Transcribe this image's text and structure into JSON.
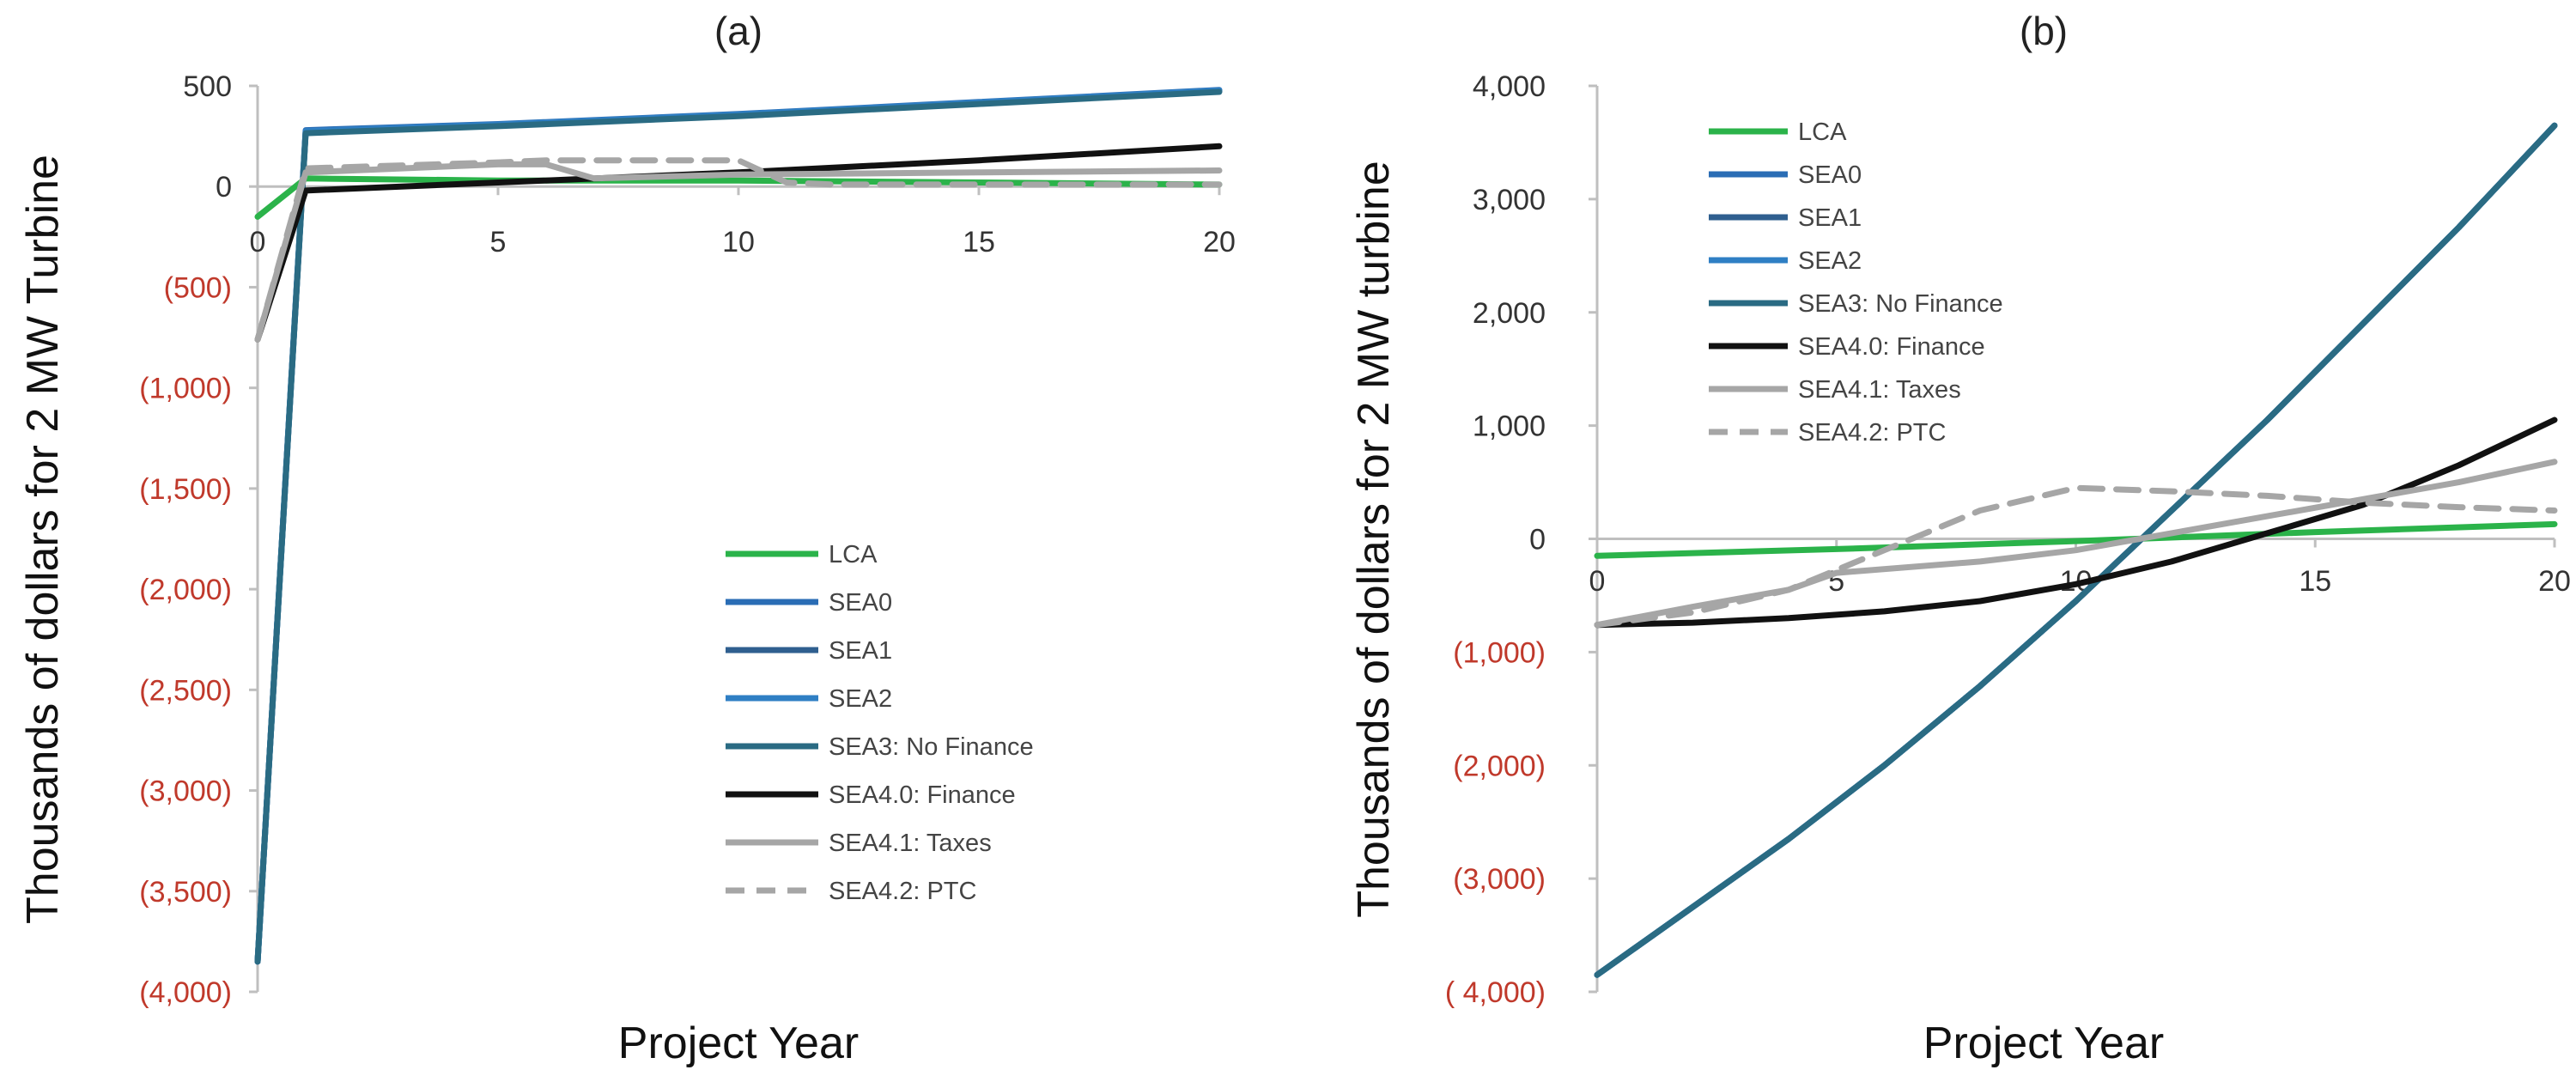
{
  "chart_data": [
    {
      "type": "line",
      "panel": "(a)",
      "xlabel": "Project Year",
      "ylabel": "Thousands of dollars for 2 MW Turbine",
      "xlim": [
        0,
        20
      ],
      "ylim": [
        -4000,
        500
      ],
      "xticks": [
        "0",
        "5",
        "10",
        "15",
        "20"
      ],
      "xtick_values": [
        0,
        5,
        10,
        15,
        20
      ],
      "yticks": [
        "500",
        "0",
        "(500)",
        "(1,000)",
        "(1,500)",
        "(2,000)",
        "(2,500)",
        "(3,000)",
        "(3,500)",
        "(4,000)"
      ],
      "ytick_values": [
        500,
        0,
        -500,
        -1000,
        -1500,
        -2000,
        -2500,
        -3000,
        -3500,
        -4000
      ],
      "legend_position": "bottom-right",
      "series": [
        {
          "name": "LCA",
          "color": "#2bb34a",
          "dash": false,
          "x": [
            0,
            1,
            5,
            10,
            15,
            20
          ],
          "y": [
            -150,
            40,
            30,
            30,
            20,
            10
          ]
        },
        {
          "name": "SEA0",
          "color": "#2a6db5",
          "dash": false,
          "x": [
            0,
            1,
            5,
            10,
            15,
            20
          ],
          "y": [
            -3850,
            280,
            310,
            360,
            420,
            480
          ]
        },
        {
          "name": "SEA1",
          "color": "#2f5f8f",
          "dash": false,
          "x": [
            0,
            1,
            5,
            10,
            15,
            20
          ],
          "y": [
            -3850,
            270,
            305,
            355,
            415,
            475
          ]
        },
        {
          "name": "SEA2",
          "color": "#2f7fc4",
          "dash": false,
          "x": [
            0,
            1,
            5,
            10,
            15,
            20
          ],
          "y": [
            -3850,
            275,
            308,
            358,
            418,
            478
          ]
        },
        {
          "name": "SEA3: No Finance",
          "color": "#2a6b83",
          "dash": false,
          "x": [
            0,
            1,
            5,
            10,
            15,
            20
          ],
          "y": [
            -3850,
            265,
            300,
            350,
            410,
            470
          ]
        },
        {
          "name": "SEA4.0: Finance",
          "color": "#111111",
          "dash": false,
          "x": [
            0,
            1,
            5,
            10,
            15,
            20
          ],
          "y": [
            -760,
            -20,
            20,
            70,
            130,
            200
          ]
        },
        {
          "name": "SEA4.1: Taxes",
          "color": "#a6a6a6",
          "dash": false,
          "x": [
            0,
            1,
            5,
            6,
            7,
            10,
            15,
            20
          ],
          "y": [
            -760,
            70,
            110,
            110,
            40,
            60,
            70,
            80
          ]
        },
        {
          "name": "SEA4.2: PTC",
          "color": "#a6a6a6",
          "dash": true,
          "x": [
            0,
            1,
            5,
            6,
            10,
            11,
            12,
            15,
            20
          ],
          "y": [
            -760,
            90,
            120,
            130,
            130,
            20,
            10,
            10,
            10
          ]
        }
      ]
    },
    {
      "type": "line",
      "panel": "(b)",
      "xlabel": "Project Year",
      "ylabel": "Thousands of dollars for 2 MW turbine",
      "xlim": [
        0,
        20
      ],
      "ylim": [
        -4000,
        4000
      ],
      "xticks": [
        "0",
        "5",
        "10",
        "15",
        "20"
      ],
      "xtick_values": [
        0,
        5,
        10,
        15,
        20
      ],
      "yticks": [
        "4,000",
        "3,000",
        "2,000",
        "1,000",
        "0",
        "(1,000)",
        "(2,000)",
        "(3,000)",
        "( 4,000)"
      ],
      "ytick_values": [
        4000,
        3000,
        2000,
        1000,
        0,
        -1000,
        -2000,
        -3000,
        -4000
      ],
      "legend_position": "top-left",
      "series": [
        {
          "name": "LCA",
          "color": "#2bb34a",
          "dash": false,
          "x": [
            0,
            5,
            10,
            15,
            20
          ],
          "y": [
            -150,
            -90,
            -20,
            60,
            130
          ]
        },
        {
          "name": "SEA0",
          "color": "#2a6db5",
          "dash": false,
          "x": [
            0,
            2,
            4,
            6,
            8,
            10,
            12,
            14,
            16,
            18,
            20
          ],
          "y": [
            -3850,
            -3250,
            -2650,
            -2000,
            -1300,
            -550,
            250,
            1050,
            1900,
            2750,
            3650
          ]
        },
        {
          "name": "SEA1",
          "color": "#2f5f8f",
          "dash": false,
          "x": [
            0,
            2,
            4,
            6,
            8,
            10,
            12,
            14,
            16,
            18,
            20
          ],
          "y": [
            -3850,
            -3250,
            -2650,
            -2000,
            -1300,
            -550,
            250,
            1050,
            1900,
            2750,
            3650
          ]
        },
        {
          "name": "SEA2",
          "color": "#2f7fc4",
          "dash": false,
          "x": [
            0,
            2,
            4,
            6,
            8,
            10,
            12,
            14,
            16,
            18,
            20
          ],
          "y": [
            -3850,
            -3250,
            -2650,
            -2000,
            -1300,
            -550,
            250,
            1050,
            1900,
            2750,
            3650
          ]
        },
        {
          "name": "SEA3: No Finance",
          "color": "#2a6b83",
          "dash": false,
          "x": [
            0,
            2,
            4,
            6,
            8,
            10,
            12,
            14,
            16,
            18,
            20
          ],
          "y": [
            -3850,
            -3250,
            -2650,
            -2000,
            -1300,
            -550,
            250,
            1050,
            1900,
            2750,
            3650
          ]
        },
        {
          "name": "SEA4.0: Finance",
          "color": "#111111",
          "dash": false,
          "x": [
            0,
            2,
            4,
            6,
            8,
            10,
            12,
            14,
            16,
            18,
            20
          ],
          "y": [
            -760,
            -740,
            -700,
            -640,
            -550,
            -400,
            -200,
            50,
            300,
            650,
            1050
          ]
        },
        {
          "name": "SEA4.1: Taxes",
          "color": "#a6a6a6",
          "dash": false,
          "x": [
            0,
            2,
            4,
            5,
            8,
            10,
            12,
            14,
            16,
            18,
            20
          ],
          "y": [
            -760,
            -600,
            -450,
            -300,
            -200,
            -100,
            50,
            200,
            350,
            500,
            680
          ]
        },
        {
          "name": "SEA4.2: PTC",
          "color": "#a6a6a6",
          "dash": true,
          "x": [
            0,
            2,
            4,
            6,
            8,
            10,
            12,
            14,
            16,
            18,
            20
          ],
          "y": [
            -760,
            -650,
            -450,
            -100,
            250,
            450,
            420,
            380,
            320,
            280,
            250
          ]
        }
      ]
    }
  ]
}
